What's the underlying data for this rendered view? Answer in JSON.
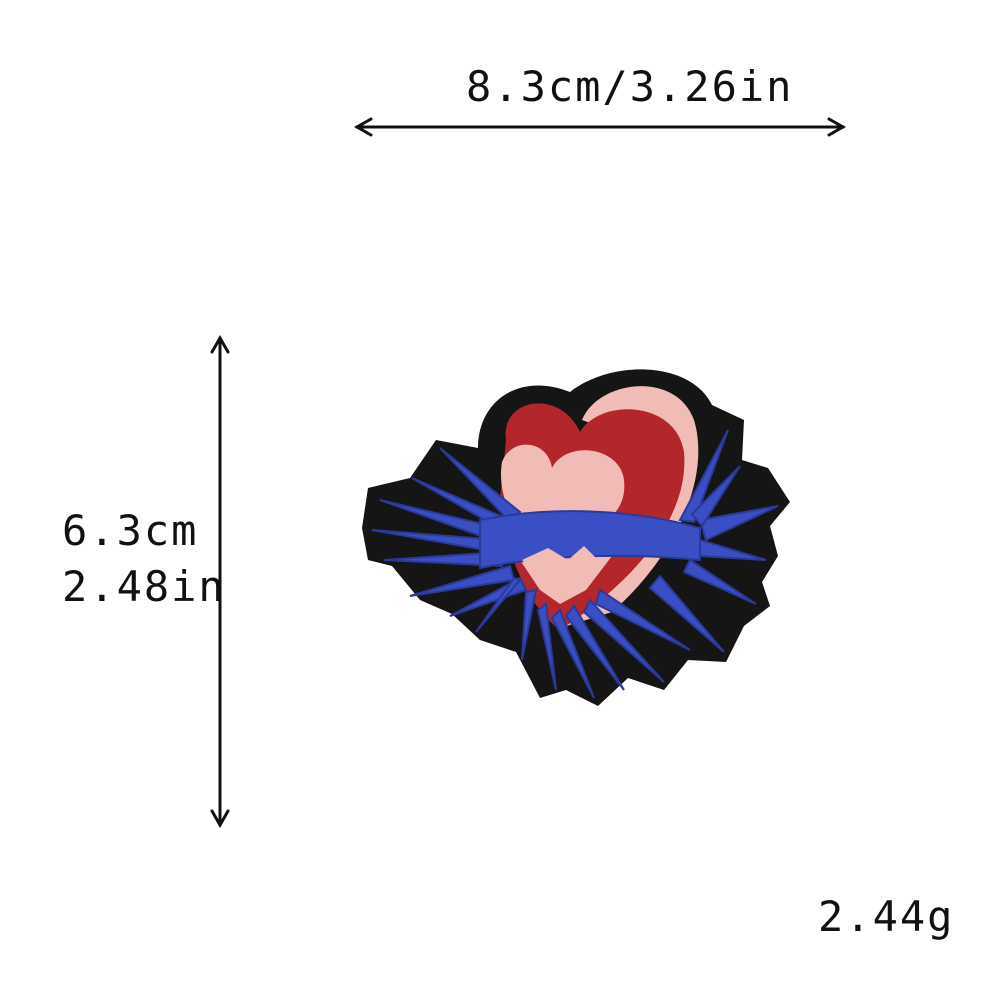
{
  "dimensions": {
    "width_text": "8.3cm/3.26in",
    "height_cm_text": "6.3cm",
    "height_in_text": "2.48in",
    "weight_text": "2.44g"
  },
  "product": {
    "subject": "embroidered heart patch with blue feathered wings",
    "colors": {
      "border": "#151515",
      "heart_red": "#b3262b",
      "heart_pink": "#f2bcb6",
      "wings_blue": "#3b4fc4",
      "wings_blue_dark": "#2a3a9a"
    }
  },
  "icons": {
    "width_arrow": "double-horizontal-arrow",
    "height_arrow": "double-vertical-arrow"
  }
}
